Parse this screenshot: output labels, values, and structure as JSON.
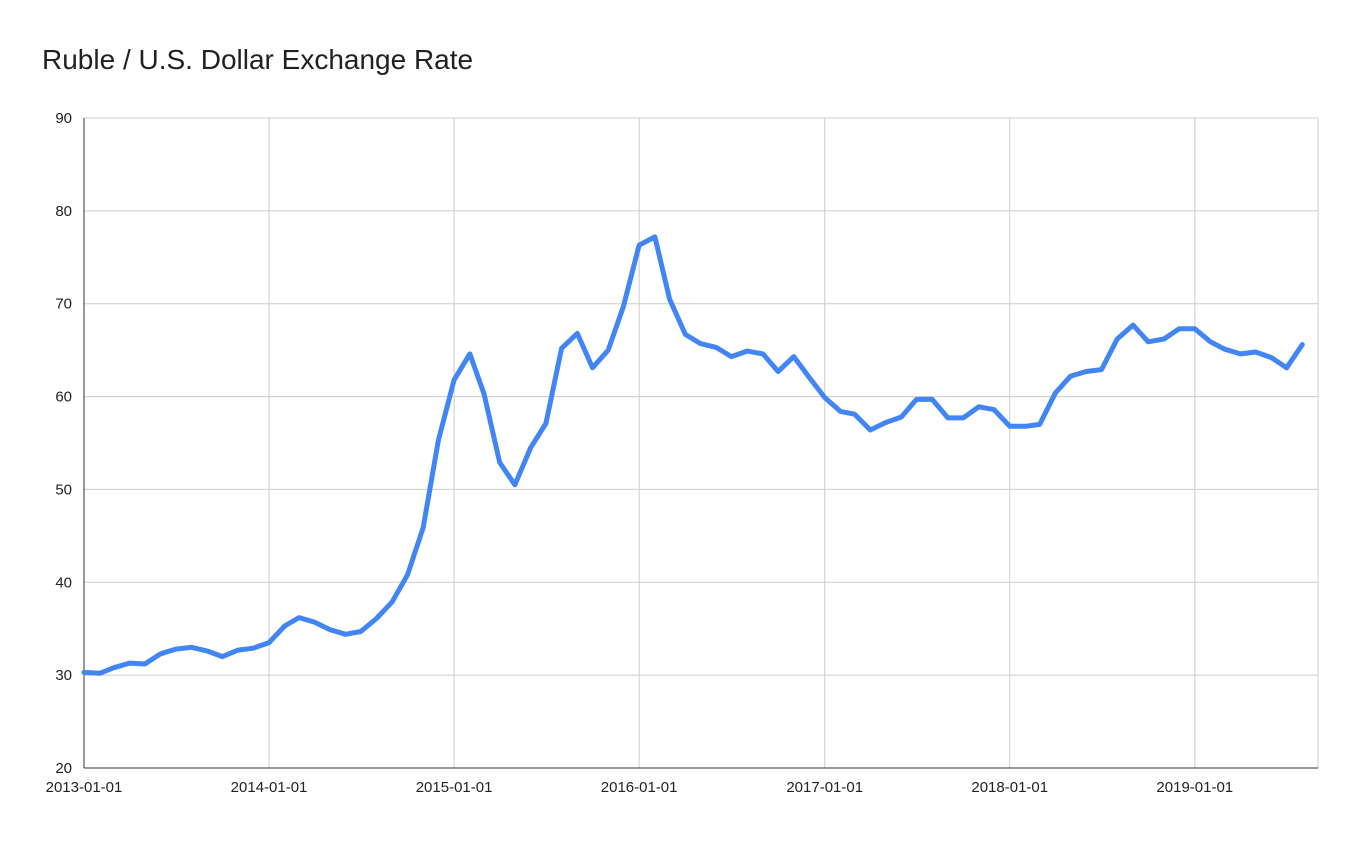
{
  "chart_data": {
    "type": "line",
    "title": "Ruble / U.S. Dollar Exchange Rate",
    "xlabel": "",
    "ylabel": "",
    "ylim": [
      20,
      90
    ],
    "xlim": [
      "2013-01-01",
      "2019-09-01"
    ],
    "y_ticks": [
      "20",
      "30",
      "40",
      "50",
      "60",
      "70",
      "80",
      "90"
    ],
    "x_ticks": [
      "2013-01-01",
      "2014-01-01",
      "2015-01-01",
      "2016-01-01",
      "2017-01-01",
      "2018-01-01",
      "2019-01-01"
    ],
    "grid": true,
    "line_color": "#4285f4",
    "x": [
      "2013-01-01",
      "2013-02-01",
      "2013-03-01",
      "2013-04-01",
      "2013-05-01",
      "2013-06-01",
      "2013-07-01",
      "2013-08-01",
      "2013-09-01",
      "2013-10-01",
      "2013-11-01",
      "2013-12-01",
      "2014-01-01",
      "2014-02-01",
      "2014-03-01",
      "2014-04-01",
      "2014-05-01",
      "2014-06-01",
      "2014-07-01",
      "2014-08-01",
      "2014-09-01",
      "2014-10-01",
      "2014-11-01",
      "2014-12-01",
      "2015-01-01",
      "2015-02-01",
      "2015-03-01",
      "2015-04-01",
      "2015-05-01",
      "2015-06-01",
      "2015-07-01",
      "2015-08-01",
      "2015-09-01",
      "2015-10-01",
      "2015-11-01",
      "2015-12-01",
      "2016-01-01",
      "2016-02-01",
      "2016-03-01",
      "2016-04-01",
      "2016-05-01",
      "2016-06-01",
      "2016-07-01",
      "2016-08-01",
      "2016-09-01",
      "2016-10-01",
      "2016-11-01",
      "2016-12-01",
      "2017-01-01",
      "2017-02-01",
      "2017-03-01",
      "2017-04-01",
      "2017-05-01",
      "2017-06-01",
      "2017-07-01",
      "2017-08-01",
      "2017-09-01",
      "2017-10-01",
      "2017-11-01",
      "2017-12-01",
      "2018-01-01",
      "2018-02-01",
      "2018-03-01",
      "2018-04-01",
      "2018-05-01",
      "2018-06-01",
      "2018-07-01",
      "2018-08-01",
      "2018-09-01",
      "2018-10-01",
      "2018-11-01",
      "2018-12-01",
      "2019-01-01",
      "2019-02-01",
      "2019-03-01",
      "2019-04-01",
      "2019-05-01",
      "2019-06-01",
      "2019-07-01",
      "2019-08-01"
    ],
    "values": [
      30.3,
      30.2,
      30.8,
      31.3,
      31.2,
      32.3,
      32.8,
      33.0,
      32.6,
      32.0,
      32.7,
      32.9,
      33.5,
      35.3,
      36.2,
      35.7,
      34.9,
      34.4,
      34.7,
      36.1,
      37.9,
      40.8,
      45.9,
      55.3,
      61.8,
      64.6,
      60.3,
      52.9,
      50.5,
      54.5,
      57.1,
      65.2,
      66.8,
      63.1,
      65.0,
      69.7,
      76.3,
      77.2,
      70.5,
      66.7,
      65.7,
      65.3,
      64.3,
      64.9,
      64.6,
      62.7,
      64.3,
      62.1,
      59.9,
      58.4,
      58.1,
      56.4,
      57.2,
      57.8,
      59.7,
      59.7,
      57.7,
      57.7,
      58.9,
      58.6,
      56.8,
      56.8,
      57.0,
      60.4,
      62.2,
      62.7,
      62.9,
      66.2,
      67.7,
      65.9,
      66.2,
      67.3,
      67.3,
      65.9,
      65.1,
      64.6,
      64.8,
      64.2,
      63.1,
      65.6
    ]
  }
}
